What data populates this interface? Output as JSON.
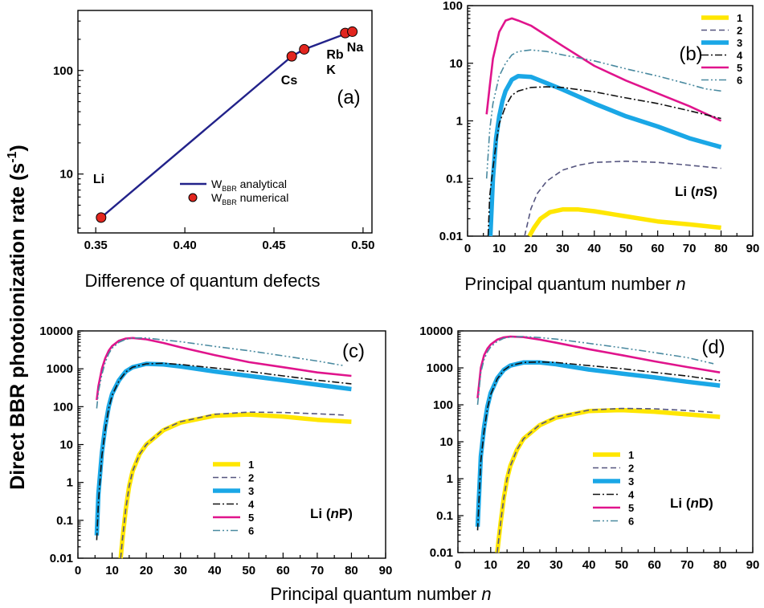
{
  "figure": {
    "ylabel_prefix": "Direct BBR photoionization rate (s",
    "ylabel_exp": "-1",
    "ylabel_suffix": ")",
    "xlabel_panels": "Principal quantum number",
    "xlabel_italic": "n",
    "xlabel_a": "Difference of quantum defects"
  },
  "colors": {
    "1": "#ffe600",
    "2": "#55557f",
    "3": "#1aa7e6",
    "4": "#111111",
    "5": "#e0148c",
    "6": "#4a8aa0",
    "analytical": "#22228a",
    "numerical": "#e2261f"
  },
  "chart_data": [
    {
      "panel": "(a)",
      "type": "line",
      "scale_y": "log",
      "xlim": [
        0.34,
        0.505
      ],
      "ylim": [
        2.7,
        380
      ],
      "xticks": [
        "0.35",
        "0.40",
        "0.45",
        "0.50"
      ],
      "xtick_values": [
        0.35,
        0.4,
        0.45,
        0.5
      ],
      "yticks": [
        "10",
        "100"
      ],
      "ytick_values": [
        10,
        100
      ],
      "series": [
        {
          "name": "W_BBR analytical",
          "name_main": "W",
          "name_sub": "BBR",
          "name_rest": " analytical",
          "style": "line",
          "x": [
            0.353,
            0.46,
            0.467,
            0.49,
            0.494
          ],
          "y": [
            3.8,
            137,
            160,
            225,
            232
          ]
        },
        {
          "name": "W_BBR numerical",
          "name_main": "W",
          "name_sub": "BBR",
          "name_rest": " numerical",
          "style": "marker",
          "x": [
            0.353,
            0.46,
            0.467,
            0.49,
            0.494
          ],
          "y": [
            3.8,
            137,
            160,
            230,
            237
          ]
        }
      ],
      "annotations": [
        "Li",
        "Cs",
        "K",
        "Rb",
        "Na"
      ]
    },
    {
      "panel": "(b)",
      "title": "Li (nS)",
      "title_pre": "Li (",
      "title_n": "n",
      "title_post": "S)",
      "type": "line",
      "scale_y": "log",
      "xlim": [
        0,
        90
      ],
      "ylim": [
        0.01,
        100
      ],
      "xticks": [
        "0",
        "10",
        "20",
        "30",
        "40",
        "50",
        "60",
        "70",
        "80",
        "90"
      ],
      "yticks": [
        "0.01",
        "0.1",
        "1",
        "10",
        "100"
      ],
      "ytick_values": [
        0.01,
        0.1,
        1,
        10,
        100
      ],
      "series": [
        {
          "name": "1",
          "x": [
            19.5,
            21,
            23,
            26,
            30,
            35,
            40,
            50,
            60,
            70,
            80
          ],
          "y": [
            0.01,
            0.014,
            0.02,
            0.026,
            0.029,
            0.029,
            0.027,
            0.022,
            0.018,
            0.016,
            0.014
          ]
        },
        {
          "name": "2",
          "x": [
            18,
            20,
            22,
            25,
            30,
            35,
            40,
            50,
            60,
            70,
            80
          ],
          "y": [
            0.01,
            0.03,
            0.055,
            0.09,
            0.14,
            0.17,
            0.19,
            0.2,
            0.19,
            0.17,
            0.15
          ]
        },
        {
          "name": "3",
          "x": [
            7.2,
            8,
            9,
            10,
            11,
            12,
            14,
            16,
            20,
            25,
            30,
            40,
            50,
            60,
            70,
            80
          ],
          "y": [
            0.01,
            0.1,
            0.5,
            1.2,
            2.2,
            3.3,
            5.2,
            6,
            5.8,
            4.5,
            3.5,
            2,
            1.2,
            0.8,
            0.5,
            0.35
          ]
        },
        {
          "name": "4",
          "x": [
            6.5,
            7,
            8,
            9,
            10,
            12,
            14,
            16,
            20,
            25,
            30,
            40,
            50,
            60,
            70,
            80
          ],
          "y": [
            0.01,
            0.05,
            0.15,
            0.4,
            0.9,
            1.8,
            2.8,
            3.3,
            3.8,
            3.9,
            3.8,
            3.2,
            2.5,
            2,
            1.5,
            1.1
          ]
        },
        {
          "name": "5",
          "x": [
            6,
            7,
            8,
            10,
            12,
            14,
            16,
            20,
            25,
            30,
            40,
            50,
            60,
            70,
            80
          ],
          "y": [
            1.3,
            4,
            12,
            35,
            55,
            60,
            55,
            45,
            30,
            20,
            9,
            5,
            3,
            1.8,
            1
          ]
        },
        {
          "name": "6",
          "x": [
            6,
            7,
            8,
            10,
            12,
            14,
            16,
            20,
            25,
            30,
            40,
            50,
            60,
            70,
            75,
            80
          ],
          "y": [
            0.1,
            0.7,
            2,
            6,
            10,
            14,
            16,
            17,
            16,
            14,
            11,
            8,
            6,
            4.3,
            3.6,
            3.3
          ]
        }
      ]
    },
    {
      "panel": "(c)",
      "title": "Li (nP)",
      "title_pre": "Li (",
      "title_n": "n",
      "title_post": "P)",
      "type": "line",
      "scale_y": "log",
      "xlim": [
        0,
        90
      ],
      "ylim": [
        0.01,
        10000
      ],
      "xticks": [
        "0",
        "10",
        "20",
        "30",
        "40",
        "50",
        "60",
        "70",
        "80",
        "90"
      ],
      "yticks": [
        "0.01",
        "0.1",
        "1",
        "10",
        "100",
        "1000",
        "10000"
      ],
      "ytick_values": [
        0.01,
        0.1,
        1,
        10,
        100,
        1000,
        10000
      ],
      "series": [
        {
          "name": "1",
          "x": [
            12.5,
            13,
            14,
            15,
            16,
            18,
            20,
            25,
            30,
            40,
            50,
            60,
            70,
            80
          ],
          "y": [
            0.01,
            0.03,
            0.2,
            0.8,
            2,
            5.5,
            10,
            24,
            38,
            58,
            62,
            55,
            45,
            40
          ]
        },
        {
          "name": "2",
          "x": [
            12.5,
            13,
            14,
            15,
            16,
            18,
            20,
            25,
            30,
            40,
            50,
            60,
            70,
            78
          ],
          "y": [
            0.01,
            0.03,
            0.2,
            0.8,
            2,
            5.5,
            10,
            25,
            40,
            63,
            72,
            70,
            65,
            60
          ]
        },
        {
          "name": "3",
          "x": [
            5.5,
            6,
            7,
            8,
            9,
            10,
            12,
            14,
            16,
            20,
            25,
            30,
            40,
            50,
            60,
            70,
            80
          ],
          "y": [
            0.04,
            0.5,
            6,
            30,
            100,
            220,
            500,
            850,
            1100,
            1350,
            1300,
            1150,
            850,
            650,
            500,
            380,
            290
          ]
        },
        {
          "name": "4",
          "x": [
            5.5,
            6,
            7,
            8,
            9,
            10,
            12,
            14,
            16,
            20,
            25,
            30,
            40,
            50,
            60,
            70,
            80
          ],
          "y": [
            0.03,
            0.3,
            5,
            25,
            90,
            200,
            480,
            830,
            1100,
            1350,
            1400,
            1300,
            1050,
            850,
            650,
            500,
            400
          ]
        },
        {
          "name": "5",
          "x": [
            5.5,
            6,
            7,
            8,
            9,
            10,
            12,
            14,
            16,
            20,
            25,
            30,
            40,
            50,
            60,
            70,
            80
          ],
          "y": [
            150,
            350,
            1000,
            1900,
            3000,
            4000,
            5500,
            6300,
            6500,
            6000,
            4800,
            3700,
            2300,
            1500,
            1100,
            800,
            650
          ]
        },
        {
          "name": "6",
          "x": [
            5.5,
            6,
            7,
            8,
            9,
            10,
            12,
            14,
            16,
            20,
            25,
            30,
            40,
            50,
            60,
            70,
            78
          ],
          "y": [
            90,
            250,
            700,
            1500,
            2500,
            3500,
            5000,
            6000,
            6500,
            6500,
            5800,
            5200,
            3900,
            3000,
            2200,
            1600,
            1200
          ]
        }
      ]
    },
    {
      "panel": "(d)",
      "title": "Li (nD)",
      "title_pre": "Li (",
      "title_n": "n",
      "title_post": "D)",
      "type": "line",
      "scale_y": "log",
      "xlim": [
        0,
        90
      ],
      "ylim": [
        0.01,
        10000
      ],
      "xticks": [
        "0",
        "10",
        "20",
        "30",
        "40",
        "50",
        "60",
        "70",
        "80",
        "90"
      ],
      "yticks": [
        "0.01",
        "0.1",
        "1",
        "10",
        "100",
        "1000",
        "10000"
      ],
      "ytick_values": [
        0.01,
        0.1,
        1,
        10,
        100,
        1000,
        10000
      ],
      "series": [
        {
          "name": "1",
          "x": [
            12,
            13,
            14,
            15,
            16,
            18,
            20,
            25,
            30,
            40,
            50,
            60,
            70,
            80
          ],
          "y": [
            0.01,
            0.06,
            0.3,
            1,
            2.2,
            6,
            12,
            28,
            45,
            68,
            72,
            65,
            55,
            47
          ]
        },
        {
          "name": "2",
          "x": [
            12,
            13,
            14,
            15,
            16,
            18,
            20,
            25,
            30,
            40,
            50,
            60,
            70,
            78
          ],
          "y": [
            0.01,
            0.06,
            0.3,
            1,
            2.2,
            6,
            12,
            29,
            47,
            72,
            80,
            78,
            70,
            62
          ]
        },
        {
          "name": "3",
          "x": [
            6,
            7,
            8,
            9,
            10,
            12,
            14,
            16,
            20,
            25,
            30,
            40,
            50,
            60,
            70,
            80
          ],
          "y": [
            0.05,
            4,
            25,
            90,
            210,
            520,
            880,
            1150,
            1400,
            1400,
            1250,
            900,
            700,
            550,
            420,
            330
          ]
        },
        {
          "name": "4",
          "x": [
            6,
            7,
            8,
            9,
            10,
            12,
            14,
            16,
            20,
            25,
            30,
            40,
            50,
            60,
            70,
            80
          ],
          "y": [
            0.04,
            3,
            20,
            80,
            190,
            500,
            860,
            1150,
            1400,
            1450,
            1400,
            1150,
            950,
            750,
            600,
            450
          ]
        },
        {
          "name": "5",
          "x": [
            6,
            7,
            8,
            9,
            10,
            12,
            14,
            16,
            20,
            25,
            30,
            40,
            50,
            60,
            70,
            80
          ],
          "y": [
            150,
            1000,
            2200,
            3300,
            4300,
            5800,
            6700,
            7000,
            6800,
            5800,
            4800,
            3200,
            2200,
            1500,
            1050,
            750
          ]
        },
        {
          "name": "6",
          "x": [
            6,
            7,
            8,
            9,
            10,
            12,
            14,
            16,
            20,
            25,
            30,
            40,
            50,
            60,
            70,
            78
          ],
          "y": [
            100,
            750,
            1700,
            2700,
            3700,
            5200,
            6300,
            6800,
            7000,
            6600,
            6000,
            4600,
            3500,
            2600,
            1900,
            1300
          ]
        }
      ]
    }
  ]
}
